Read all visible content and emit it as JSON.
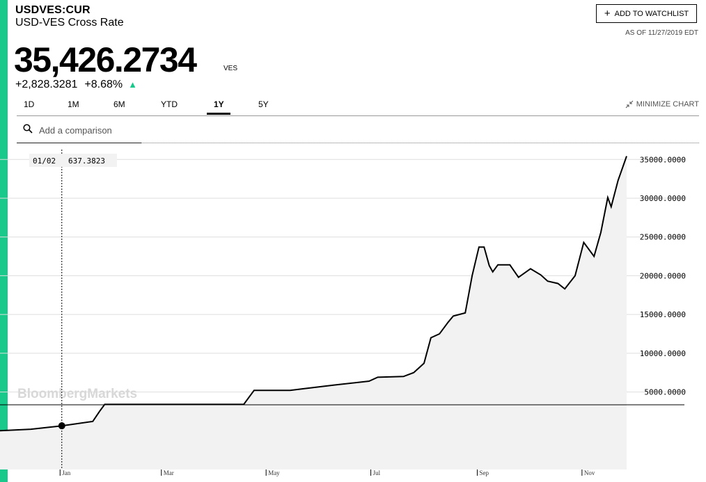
{
  "header": {
    "ticker": "USDVES:CUR",
    "name": "USD-VES Cross Rate",
    "price": "35,426.2734",
    "currency": "VES",
    "change": "+2,828.3281",
    "change_pct": "+8.68%",
    "arrow": "▲",
    "watchlist_label": "ADD TO WATCHLIST",
    "as_of": "AS OF 11/27/2019 EDT"
  },
  "tabs": [
    {
      "label": "1D"
    },
    {
      "label": "1M"
    },
    {
      "label": "6M"
    },
    {
      "label": "YTD"
    },
    {
      "label": "1Y",
      "active": true
    },
    {
      "label": "5Y"
    }
  ],
  "minimize_label": "MINIMIZE CHART",
  "compare": {
    "placeholder": "Add a comparison"
  },
  "colors": {
    "accent": "#19c98b",
    "line": "#000000",
    "area": "#f2f2f2",
    "grid": "#dddddd"
  },
  "chart_data": {
    "type": "area",
    "y_axis_side": "right",
    "ylim": [
      -5000,
      37000
    ],
    "y_ticks": [
      5000,
      10000,
      15000,
      20000,
      25000,
      30000,
      35000
    ],
    "y_tick_labels": [
      "5000.0000",
      "10000.0000",
      "15000.0000",
      "20000.0000",
      "25000.0000",
      "30000.0000",
      "35000.0000"
    ],
    "x_start": "2018-11-27",
    "x_end": "2019-11-27",
    "x_ticks": [
      {
        "label": "Jan",
        "date": "2019-01-01"
      },
      {
        "label": "Mar",
        "date": "2019-03-01"
      },
      {
        "label": "May",
        "date": "2019-05-01"
      },
      {
        "label": "Jul",
        "date": "2019-07-01"
      },
      {
        "label": "Sep",
        "date": "2019-09-01"
      },
      {
        "label": "Nov",
        "date": "2019-11-01"
      }
    ],
    "watermark": "BloombergMarkets",
    "tooltip": {
      "date_label": "01/02",
      "value_label": "637.3823",
      "date": "2019-01-02",
      "value": 637.3823
    },
    "series": [
      {
        "x": [
          "2018-11-27",
          "2018-12-15",
          "2019-01-02",
          "2019-01-20",
          "2019-01-24",
          "2019-01-27",
          "2019-02-15",
          "2019-03-15",
          "2019-04-10",
          "2019-04-18",
          "2019-04-24",
          "2019-05-15",
          "2019-05-22",
          "2019-06-10",
          "2019-06-30",
          "2019-07-05",
          "2019-07-20",
          "2019-07-26",
          "2019-08-01",
          "2019-08-05",
          "2019-08-10",
          "2019-08-15",
          "2019-08-18",
          "2019-08-25",
          "2019-08-29",
          "2019-09-02",
          "2019-09-05",
          "2019-09-08",
          "2019-09-10",
          "2019-09-13",
          "2019-09-20",
          "2019-09-25",
          "2019-10-02",
          "2019-10-08",
          "2019-10-12",
          "2019-10-18",
          "2019-10-22",
          "2019-10-28",
          "2019-11-02",
          "2019-11-08",
          "2019-11-12",
          "2019-11-16",
          "2019-11-18",
          "2019-11-22",
          "2019-11-27"
        ],
        "y": [
          -1,
          200,
          637,
          1200,
          2500,
          3400,
          3400,
          3400,
          3400,
          3400,
          5200,
          5200,
          5400,
          5900,
          6400,
          6900,
          7000,
          7500,
          8700,
          12000,
          12500,
          14000,
          14800,
          15200,
          20000,
          23700,
          23700,
          21300,
          20500,
          21400,
          21400,
          19800,
          20900,
          20100,
          19300,
          19000,
          18300,
          20000,
          24300,
          22500,
          25600,
          30100,
          28900,
          32300,
          35426
        ]
      }
    ]
  }
}
